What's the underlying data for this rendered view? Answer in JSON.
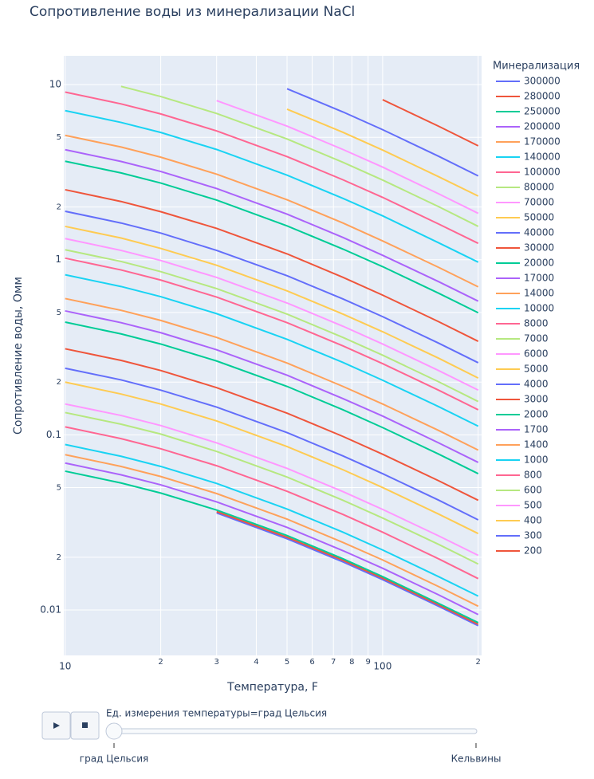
{
  "chart_data": {
    "type": "line",
    "title": "Сопротивление воды из минерализации NaCl",
    "x_label": "Температура, F",
    "y_label": "Сопротивление воды, Омм",
    "legend_title": "Минерализация",
    "log_x": true,
    "log_y": true,
    "grid": true,
    "legend": "right",
    "xlim": [
      9.9,
      205
    ],
    "ylim": [
      0.0055,
      14.6
    ],
    "xticks": [
      10,
      {
        "value": 20,
        "label": "2"
      },
      {
        "value": 30,
        "label": "3"
      },
      {
        "value": 40,
        "label": "4"
      },
      {
        "value": 50,
        "label": "5"
      },
      {
        "value": 60,
        "label": "6"
      },
      {
        "value": 70,
        "label": "7"
      },
      {
        "value": 80,
        "label": "8"
      },
      {
        "value": 90,
        "label": "9"
      },
      100,
      {
        "value": 200,
        "label": "2"
      }
    ],
    "yticks": [
      0.01,
      {
        "value": 0.02,
        "label": "2"
      },
      {
        "value": 0.05,
        "label": "5"
      },
      0.1,
      {
        "value": 0.2,
        "label": "2"
      },
      {
        "value": 0.5,
        "label": "5"
      },
      1,
      {
        "value": 2,
        "label": "2"
      },
      {
        "value": 5,
        "label": "5"
      },
      10
    ],
    "x": [
      10,
      15,
      20,
      30,
      50,
      75,
      100,
      150,
      200
    ],
    "series": [
      {
        "name": "300000",
        "color": "#636efa",
        "values": [
          null,
          null,
          null,
          0.0358,
          0.0255,
          0.0188,
          0.0149,
          0.0105,
          0.00813
        ]
      },
      {
        "name": "280000",
        "color": "#EF553B",
        "values": [
          null,
          null,
          null,
          0.0364,
          0.026,
          0.0192,
          0.0152,
          0.0107,
          0.00828
        ]
      },
      {
        "name": "250000",
        "color": "#00cc96",
        "values": [
          0.062,
          0.0531,
          0.0465,
          0.0372,
          0.0266,
          0.0196,
          0.0155,
          0.0109,
          0.00846
        ]
      },
      {
        "name": "200000",
        "color": "#ab63fa",
        "values": [
          0.069,
          0.0591,
          0.0518,
          0.0414,
          0.0296,
          0.0218,
          0.0173,
          0.0122,
          0.00941
        ]
      },
      {
        "name": "170000",
        "color": "#FFA15A",
        "values": [
          0.077,
          0.066,
          0.0578,
          0.0462,
          0.033,
          0.0243,
          0.0193,
          0.0136,
          0.0105
        ]
      },
      {
        "name": "140000",
        "color": "#19d3f3",
        "values": [
          0.088,
          0.0754,
          0.066,
          0.0528,
          0.0377,
          0.0278,
          0.022,
          0.0155,
          0.012
        ]
      },
      {
        "name": "100000",
        "color": "#FF6692",
        "values": [
          0.111,
          0.0951,
          0.0833,
          0.0666,
          0.0476,
          0.0351,
          0.0278,
          0.0196,
          0.0151
        ]
      },
      {
        "name": "80000",
        "color": "#B6E880",
        "values": [
          0.134,
          0.115,
          0.101,
          0.0804,
          0.0574,
          0.0423,
          0.0335,
          0.0237,
          0.0183
        ]
      },
      {
        "name": "70000",
        "color": "#FF97FF",
        "values": [
          0.15,
          0.129,
          0.113,
          0.09,
          0.0643,
          0.0474,
          0.0375,
          0.0265,
          0.0205
        ]
      },
      {
        "name": "50000",
        "color": "#FECB52",
        "values": [
          0.2,
          0.171,
          0.15,
          0.12,
          0.0857,
          0.0632,
          0.05,
          0.0353,
          0.0273
        ]
      },
      {
        "name": "40000",
        "color": "#636efa",
        "values": [
          0.24,
          0.206,
          0.18,
          0.144,
          0.103,
          0.0758,
          0.06,
          0.0424,
          0.0327
        ]
      },
      {
        "name": "30000",
        "color": "#EF553B",
        "values": [
          0.31,
          0.266,
          0.233,
          0.186,
          0.133,
          0.0979,
          0.0775,
          0.0547,
          0.0423
        ]
      },
      {
        "name": "20000",
        "color": "#00cc96",
        "values": [
          0.44,
          0.377,
          0.33,
          0.264,
          0.189,
          0.139,
          0.11,
          0.0777,
          0.06
        ]
      },
      {
        "name": "17000",
        "color": "#ab63fa",
        "values": [
          0.51,
          0.437,
          0.383,
          0.306,
          0.219,
          0.161,
          0.128,
          0.09,
          0.0696
        ]
      },
      {
        "name": "14000",
        "color": "#FFA15A",
        "values": [
          0.6,
          0.514,
          0.45,
          0.36,
          0.257,
          0.189,
          0.15,
          0.106,
          0.0818
        ]
      },
      {
        "name": "10000",
        "color": "#19d3f3",
        "values": [
          0.82,
          0.703,
          0.615,
          0.492,
          0.351,
          0.259,
          0.205,
          0.145,
          0.112
        ]
      },
      {
        "name": "8000",
        "color": "#FF6692",
        "values": [
          1.02,
          0.874,
          0.765,
          0.612,
          0.437,
          0.322,
          0.255,
          0.18,
          0.139
        ]
      },
      {
        "name": "7000",
        "color": "#B6E880",
        "values": [
          1.14,
          0.977,
          0.855,
          0.684,
          0.489,
          0.36,
          0.285,
          0.201,
          0.155
        ]
      },
      {
        "name": "6000",
        "color": "#FF97FF",
        "values": [
          1.32,
          1.13,
          0.99,
          0.792,
          0.566,
          0.417,
          0.33,
          0.233,
          0.18
        ]
      },
      {
        "name": "5000",
        "color": "#FECB52",
        "values": [
          1.55,
          1.33,
          1.16,
          0.93,
          0.664,
          0.489,
          0.388,
          0.274,
          0.211
        ]
      },
      {
        "name": "4000",
        "color": "#636efa",
        "values": [
          1.89,
          1.62,
          1.42,
          1.13,
          0.81,
          0.597,
          0.473,
          0.334,
          0.258
        ]
      },
      {
        "name": "3000",
        "color": "#EF553B",
        "values": [
          2.51,
          2.15,
          1.88,
          1.51,
          1.08,
          0.793,
          0.628,
          0.443,
          0.342
        ]
      },
      {
        "name": "2000",
        "color": "#00cc96",
        "values": [
          3.65,
          3.13,
          2.74,
          2.19,
          1.56,
          1.15,
          0.913,
          0.644,
          0.498
        ]
      },
      {
        "name": "1700",
        "color": "#ab63fa",
        "values": [
          4.25,
          3.64,
          3.19,
          2.55,
          1.82,
          1.34,
          1.06,
          0.75,
          0.58
        ]
      },
      {
        "name": "1400",
        "color": "#FFA15A",
        "values": [
          5.13,
          4.4,
          3.85,
          3.08,
          2.2,
          1.62,
          1.28,
          0.905,
          0.7
        ]
      },
      {
        "name": "1000",
        "color": "#19d3f3",
        "values": [
          7.1,
          6.08,
          5.33,
          4.26,
          3.04,
          2.24,
          1.78,
          1.25,
          0.968
        ]
      },
      {
        "name": "800",
        "color": "#FF6692",
        "values": [
          9.06,
          7.76,
          6.8,
          5.44,
          3.88,
          2.86,
          2.27,
          1.6,
          1.24
        ]
      },
      {
        "name": "600",
        "color": "#B6E880",
        "values": [
          null,
          9.77,
          8.55,
          6.84,
          4.89,
          3.6,
          2.85,
          2.01,
          1.55
        ]
      },
      {
        "name": "500",
        "color": "#FF97FF",
        "values": [
          null,
          null,
          null,
          8.1,
          5.79,
          4.26,
          3.38,
          2.38,
          1.84
        ]
      },
      {
        "name": "400",
        "color": "#FECB52",
        "values": [
          null,
          null,
          null,
          null,
          7.24,
          5.34,
          4.23,
          2.98,
          2.31
        ]
      },
      {
        "name": "300",
        "color": "#636efa",
        "values": [
          null,
          null,
          null,
          null,
          9.47,
          6.98,
          5.53,
          3.9,
          3.01
        ]
      },
      {
        "name": "200",
        "color": "#EF553B",
        "values": [
          null,
          null,
          null,
          null,
          null,
          null,
          8.2,
          5.79,
          4.47
        ]
      }
    ]
  },
  "slider": {
    "label": "Ед. измерения температуры=град Цельсия",
    "steps": [
      "град Цельсия",
      "Кельвины"
    ]
  }
}
